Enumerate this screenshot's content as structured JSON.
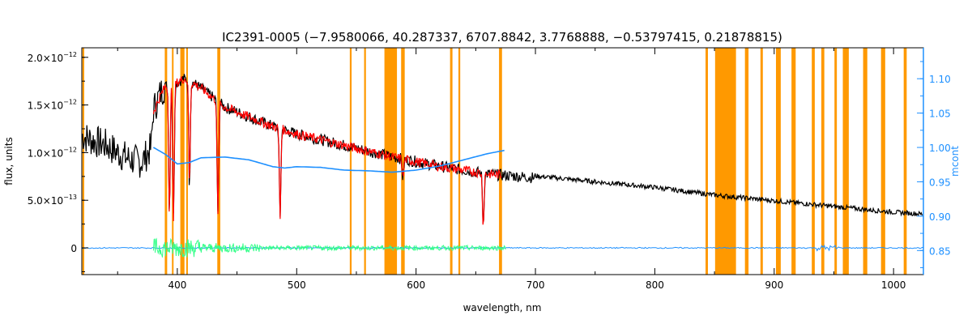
{
  "chart_data": {
    "type": "line",
    "title": "IC2391-0005    (−7.9580066, 40.287337, 6707.8842, 3.7768888, −0.53797415, 0.21878815)",
    "xlabel": "wavelength, nm",
    "ylabel": "flux, units",
    "y2label": "mcont",
    "xlim": [
      320,
      1025
    ],
    "ylim": [
      -2.8e-13,
      2.1e-12
    ],
    "y2lim": [
      0.815,
      1.145
    ],
    "x_ticks": [
      400,
      500,
      600,
      700,
      800,
      900,
      1000
    ],
    "x_tick_labels": [
      "400",
      "500",
      "600",
      "700",
      "800",
      "900",
      "1000"
    ],
    "y_ticks": [
      0,
      5e-13,
      1e-12,
      1.5e-12,
      2e-12
    ],
    "y_tick_labels": [
      {
        "mant": "0",
        "exp": ""
      },
      {
        "mant": "5.0×10",
        "exp": "−13"
      },
      {
        "mant": "1.0×10",
        "exp": "−12"
      },
      {
        "mant": "1.5×10",
        "exp": "−12"
      },
      {
        "mant": "2.0×10",
        "exp": "−12"
      }
    ],
    "y2_ticks": [
      0.85,
      0.9,
      0.95,
      1.0,
      1.05,
      1.1
    ],
    "y2_tick_labels": [
      "0.85",
      "0.90",
      "0.95",
      "1.00",
      "1.05",
      "1.10"
    ],
    "grid": false,
    "colors": {
      "observed": "#000000",
      "model": "#ff0000",
      "continuum": "#1e90ff",
      "residual_fit": "#33ff88",
      "residual_full": "#1e90ff",
      "masked": "#ff9900",
      "y2_axis": "#1e90ff"
    },
    "masked_regions": [
      [
        320.5,
        322
      ],
      [
        389.5,
        391.5
      ],
      [
        395.5,
        396.5
      ],
      [
        402.5,
        406
      ],
      [
        407.5,
        408.5
      ],
      [
        433.5,
        436
      ],
      [
        544.5,
        546
      ],
      [
        556.5,
        558
      ],
      [
        573.5,
        584
      ],
      [
        587.5,
        590.5
      ],
      [
        628.5,
        630.5
      ],
      [
        635.5,
        637
      ],
      [
        669.5,
        672
      ],
      [
        842.5,
        844.5
      ],
      [
        850.5,
        868
      ],
      [
        875.5,
        878.5
      ],
      [
        888.5,
        890.5
      ],
      [
        901.5,
        905.5
      ],
      [
        914.5,
        918
      ],
      [
        931.5,
        934
      ],
      [
        939.5,
        942
      ],
      [
        950.5,
        952.5
      ],
      [
        957.5,
        962.5
      ],
      [
        974.5,
        978
      ],
      [
        989.5,
        993
      ],
      [
        1008.5,
        1011
      ]
    ],
    "series": [
      {
        "key": "observed",
        "x": [
          320,
          330,
          340,
          350,
          360,
          370,
          378,
          380,
          385,
          390,
          395,
          400,
          405,
          410,
          415,
          420,
          430,
          440,
          450,
          460,
          470,
          480,
          490,
          500,
          520,
          540,
          560,
          580,
          600,
          620,
          640,
          660,
          680,
          700,
          750,
          800,
          850,
          900,
          950,
          1000,
          1025
        ],
        "y": [
          1.18e-12,
          1.12e-12,
          1.08e-12,
          1e-12,
          9.3e-13,
          9e-13,
          1.05e-12,
          1.45e-12,
          1.6e-12,
          1.72e-12,
          1.75e-12,
          1.76e-12,
          1.8e-12,
          1.78e-12,
          1.74e-12,
          1.7e-12,
          1.6e-12,
          1.5e-12,
          1.45e-12,
          1.4e-12,
          1.35e-12,
          1.3e-12,
          1.26e-12,
          1.22e-12,
          1.16e-12,
          1.1e-12,
          1.04e-12,
          9.8e-13,
          9.3e-13,
          8.8e-13,
          8.4e-13,
          8e-13,
          7.8e-13,
          7.6e-13,
          7e-13,
          6.4e-13,
          5.6e-13,
          5e-13,
          4.4e-13,
          3.8e-13,
          3.6e-13
        ]
      },
      {
        "key": "model",
        "x": [
          380,
          385,
          390,
          395,
          400,
          405,
          410,
          415,
          420,
          430,
          440,
          450,
          460,
          470,
          480,
          490,
          500,
          520,
          540,
          560,
          580,
          600,
          620,
          640,
          660,
          672
        ],
        "y": [
          1.45e-12,
          1.6e-12,
          1.72e-12,
          1.75e-12,
          1.76e-12,
          1.8e-12,
          1.78e-12,
          1.74e-12,
          1.7e-12,
          1.6e-12,
          1.5e-12,
          1.45e-12,
          1.4e-12,
          1.35e-12,
          1.3e-12,
          1.26e-12,
          1.22e-12,
          1.16e-12,
          1.1e-12,
          1.04e-12,
          9.8e-13,
          9.3e-13,
          8.8e-13,
          8.4e-13,
          8e-13,
          7.9e-13
        ]
      },
      {
        "key": "continuum",
        "x": [
          380,
          390,
          400,
          410,
          420,
          440,
          460,
          480,
          490,
          500,
          520,
          540,
          560,
          580,
          600,
          620,
          640,
          660,
          675
        ],
        "y2": [
          1.0,
          0.99,
          0.976,
          0.978,
          0.985,
          0.986,
          0.982,
          0.972,
          0.97,
          0.972,
          0.971,
          0.967,
          0.966,
          0.964,
          0.967,
          0.973,
          0.982,
          0.991,
          0.996
        ]
      },
      {
        "key": "residual_full",
        "x": [
          320,
          1025
        ],
        "y": [
          0,
          0
        ]
      }
    ],
    "absorption_lines": [
      {
        "x": 393.4,
        "depth": 1.35e-12
      },
      {
        "x": 396.8,
        "depth": 1.4e-12
      },
      {
        "x": 410.2,
        "depth": 1.1e-12
      },
      {
        "x": 434.0,
        "depth": 1.2e-12
      },
      {
        "x": 486.1,
        "depth": 9.5e-13
      },
      {
        "x": 589.0,
        "depth": 2e-13
      },
      {
        "x": 656.3,
        "depth": 5.5e-13
      }
    ]
  }
}
